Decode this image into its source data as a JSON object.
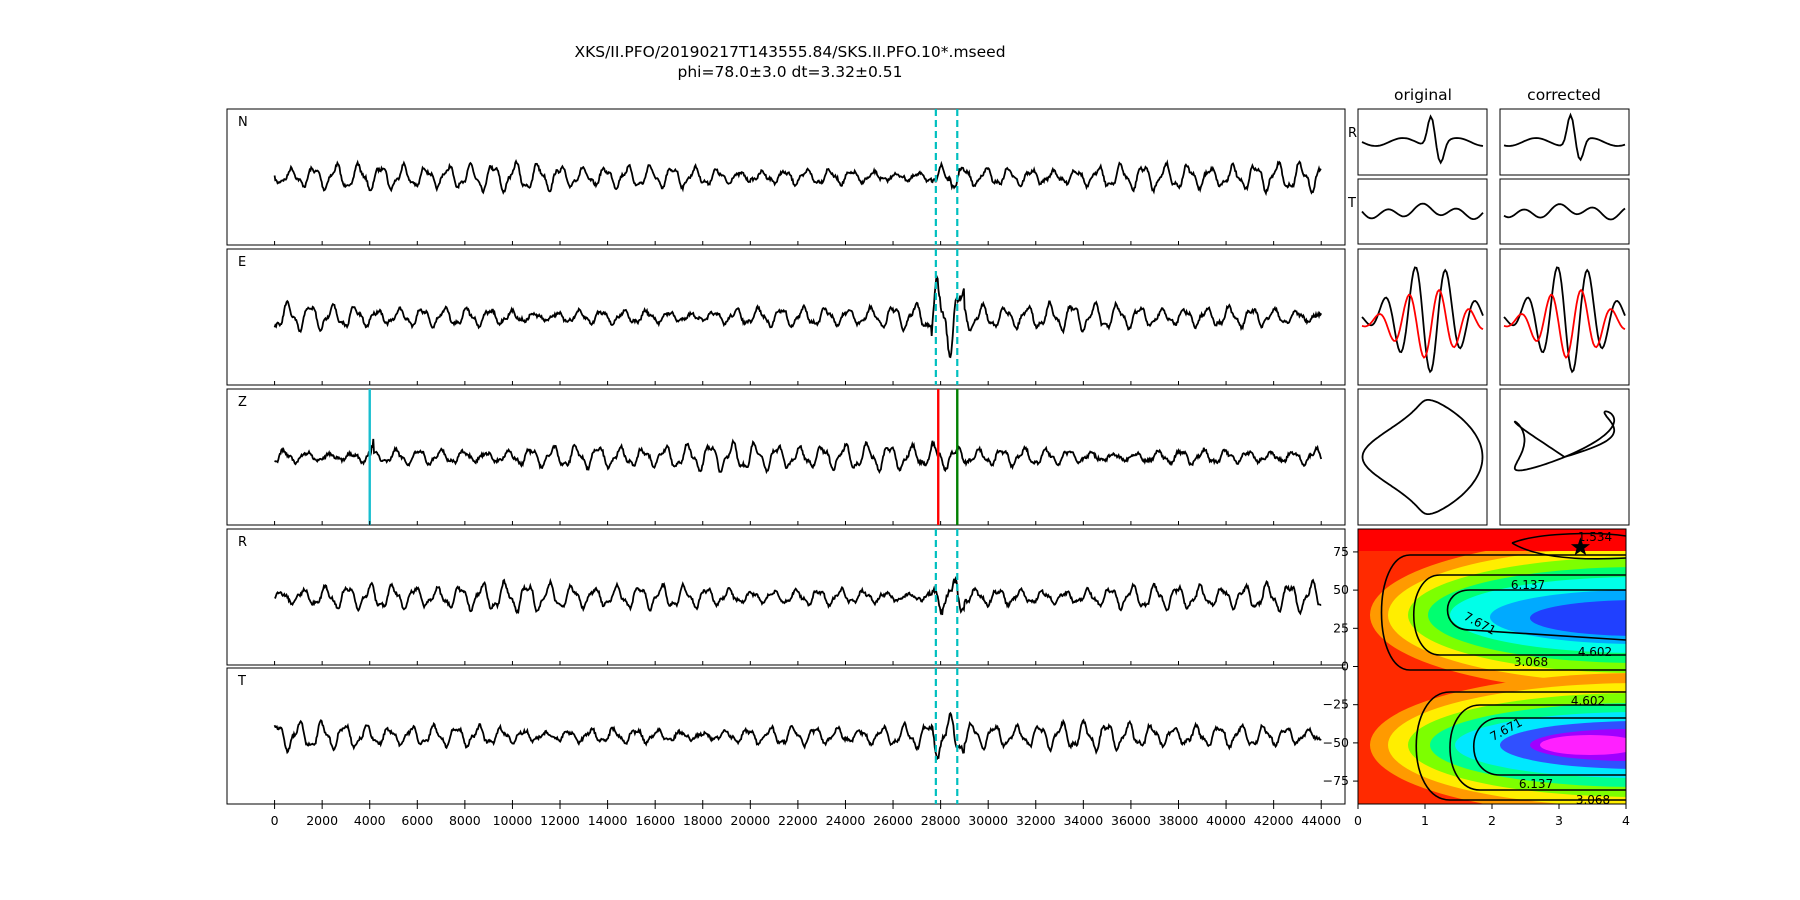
{
  "header": {
    "title": "XKS/II.PFO/20190217T143555.84/SKS.II.PFO.10*.mseed",
    "subtitle": "phi=78.0±3.0 dt=3.32±0.51"
  },
  "chart_data": [
    {
      "type": "line",
      "name": "waveform-traces",
      "traces": [
        "N",
        "E",
        "Z",
        "R",
        "T"
      ],
      "xlim": [
        -2000,
        45000
      ],
      "xticks": [
        0,
        2000,
        4000,
        6000,
        8000,
        10000,
        12000,
        14000,
        16000,
        18000,
        20000,
        22000,
        24000,
        26000,
        28000,
        30000,
        32000,
        34000,
        36000,
        38000,
        40000,
        42000,
        44000
      ],
      "signal_window": [
        27800,
        28700
      ],
      "markers": [
        {
          "x": 4000,
          "color": "#17becf",
          "trace": "Z"
        },
        {
          "x": 27900,
          "color": "#ff0000",
          "trace": "Z"
        },
        {
          "x": 28700,
          "color": "#008000",
          "trace": "Z"
        }
      ],
      "window_line_color": "#00bfbf",
      "grid": false
    },
    {
      "type": "line",
      "name": "particle-panels",
      "columns": [
        "original",
        "corrected"
      ],
      "rows": [
        "R",
        "T",
        "",
        ""
      ],
      "overlay_colors": [
        "#000000",
        "#ff0000"
      ]
    },
    {
      "type": "heatmap",
      "name": "energy-map",
      "xlim": [
        0,
        4
      ],
      "ylim": [
        -90,
        90
      ],
      "xticks": [
        0,
        1,
        2,
        3,
        4
      ],
      "yticks": [
        75,
        50,
        25,
        0,
        -25,
        -50,
        -75
      ],
      "contour_labels": [
        "1.534",
        "6.137",
        "7.671",
        "4.602",
        "3.068",
        "4.602",
        "7.671",
        "6.137",
        "3.068"
      ],
      "best_fit": {
        "dt": 3.32,
        "phi": 78.0
      },
      "colormap": "hsv"
    }
  ]
}
